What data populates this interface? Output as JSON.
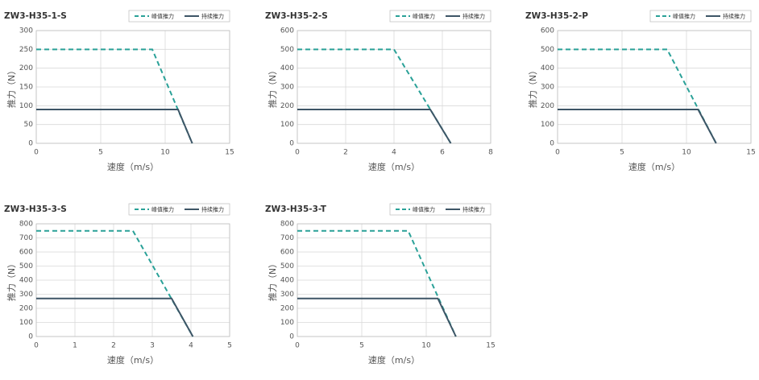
{
  "chart_data": [
    {
      "type": "line",
      "title": "ZW3-H35-1-S",
      "x_label": "速度（m/s）",
      "y_label": "推力（N）",
      "xlim": [
        0,
        15
      ],
      "xticks": [
        0,
        5,
        10,
        15
      ],
      "ylim": [
        0,
        300
      ],
      "yticks": [
        0,
        50,
        100,
        150,
        200,
        250,
        300
      ],
      "grid": true,
      "series": [
        {
          "name": "峰值推力",
          "color": "#2aa198",
          "line_style": "dashed",
          "x": [
            0,
            9,
            12.1
          ],
          "values": [
            250,
            250,
            0
          ]
        },
        {
          "name": "持续推力",
          "color": "#3d5566",
          "line_style": "solid",
          "x": [
            0,
            11,
            12.1
          ],
          "values": [
            90,
            90,
            0
          ]
        }
      ]
    },
    {
      "type": "line",
      "title": "ZW3-H35-2-S",
      "x_label": "速度（m/s）",
      "y_label": "推力（N）",
      "xlim": [
        0,
        8
      ],
      "xticks": [
        0,
        2,
        4,
        6,
        8
      ],
      "ylim": [
        0,
        600
      ],
      "yticks": [
        0,
        100,
        200,
        300,
        400,
        500,
        600
      ],
      "grid": true,
      "series": [
        {
          "name": "峰值推力",
          "color": "#2aa198",
          "line_style": "dashed",
          "x": [
            0,
            4,
            6.35
          ],
          "values": [
            500,
            500,
            0
          ]
        },
        {
          "name": "持续推力",
          "color": "#3d5566",
          "line_style": "solid",
          "x": [
            0,
            5.5,
            6.35
          ],
          "values": [
            180,
            180,
            0
          ]
        }
      ]
    },
    {
      "type": "line",
      "title": "ZW3-H35-2-P",
      "x_label": "速度（m/s）",
      "y_label": "推力（N）",
      "xlim": [
        0,
        15
      ],
      "xticks": [
        0,
        5,
        10,
        15
      ],
      "ylim": [
        0,
        600
      ],
      "yticks": [
        0,
        100,
        200,
        300,
        400,
        500,
        600
      ],
      "grid": true,
      "series": [
        {
          "name": "峰值推力",
          "color": "#2aa198",
          "line_style": "dashed",
          "x": [
            0,
            8.5,
            12.3
          ],
          "values": [
            500,
            500,
            0
          ]
        },
        {
          "name": "持续推力",
          "color": "#3d5566",
          "line_style": "solid",
          "x": [
            0,
            10.9,
            12.3
          ],
          "values": [
            180,
            180,
            0
          ]
        }
      ]
    },
    {
      "type": "line",
      "title": "ZW3-H35-3-S",
      "x_label": "速度（m/s）",
      "y_label": "推力（N）",
      "xlim": [
        0,
        5
      ],
      "xticks": [
        0,
        1,
        2,
        3,
        4,
        5
      ],
      "ylim": [
        0,
        800
      ],
      "yticks": [
        0,
        100,
        200,
        300,
        400,
        500,
        600,
        700,
        800
      ],
      "grid": true,
      "series": [
        {
          "name": "峰值推力",
          "color": "#2aa198",
          "line_style": "dashed",
          "x": [
            0,
            2.5,
            4.05
          ],
          "values": [
            750,
            750,
            0
          ]
        },
        {
          "name": "持续推力",
          "color": "#3d5566",
          "line_style": "solid",
          "x": [
            0,
            3.5,
            4.05
          ],
          "values": [
            270,
            270,
            0
          ]
        }
      ]
    },
    {
      "type": "line",
      "title": "ZW3-H35-3-T",
      "x_label": "速度（m/s）",
      "y_label": "推力（N）",
      "xlim": [
        0,
        15
      ],
      "xticks": [
        0,
        5,
        10,
        15
      ],
      "ylim": [
        0,
        800
      ],
      "yticks": [
        0,
        100,
        200,
        300,
        400,
        500,
        600,
        700,
        800
      ],
      "grid": true,
      "series": [
        {
          "name": "峰值推力",
          "color": "#2aa198",
          "line_style": "dashed",
          "x": [
            0,
            8.6,
            12.3
          ],
          "values": [
            750,
            750,
            0
          ]
        },
        {
          "name": "持续推力",
          "color": "#3d5566",
          "line_style": "solid",
          "x": [
            0,
            10.9,
            12.3
          ],
          "values": [
            270,
            270,
            0
          ]
        }
      ]
    }
  ]
}
